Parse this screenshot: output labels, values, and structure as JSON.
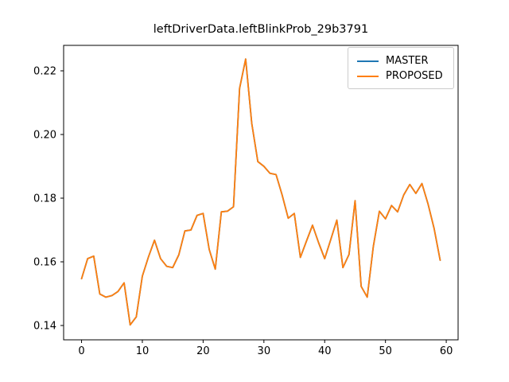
{
  "chart_data": {
    "type": "line",
    "title": "leftDriverData.leftBlinkProb_29b3791",
    "xlabel": "",
    "ylabel": "",
    "grid": false,
    "legend_position": "upper right",
    "xlim": [
      -2.95,
      61.95
    ],
    "ylim": [
      0.1355,
      0.228
    ],
    "xticks": [
      0,
      10,
      20,
      30,
      40,
      50,
      60
    ],
    "xtick_labels": [
      "0",
      "10",
      "20",
      "30",
      "40",
      "50",
      "60"
    ],
    "yticks": [
      0.14,
      0.16,
      0.18,
      0.2,
      0.22
    ],
    "ytick_labels": [
      "0.14",
      "0.16",
      "0.18",
      "0.20",
      "0.22"
    ],
    "x": [
      0,
      1,
      2,
      3,
      4,
      5,
      6,
      7,
      8,
      9,
      10,
      11,
      12,
      13,
      14,
      15,
      16,
      17,
      18,
      19,
      20,
      21,
      22,
      23,
      24,
      25,
      26,
      27,
      28,
      29,
      30,
      31,
      32,
      33,
      34,
      35,
      36,
      37,
      38,
      39,
      40,
      41,
      42,
      43,
      44,
      45,
      46,
      47,
      48,
      49,
      50,
      51,
      52,
      53,
      54,
      55,
      56,
      57,
      58,
      59
    ],
    "series": [
      {
        "name": "MASTER",
        "color": "#1f77b4",
        "note": "fully overlapped by PROPOSED in the image",
        "values": [
          0.1547,
          0.161,
          0.1618,
          0.1499,
          0.1489,
          0.1494,
          0.1507,
          0.1534,
          0.1402,
          0.1427,
          0.1555,
          0.1615,
          0.1668,
          0.161,
          0.1586,
          0.1582,
          0.1622,
          0.1697,
          0.17,
          0.1746,
          0.1752,
          0.1639,
          0.1577,
          0.1757,
          0.1759,
          0.1773,
          0.2145,
          0.2237,
          0.2035,
          0.1915,
          0.19,
          0.1878,
          0.1874,
          0.181,
          0.1737,
          0.1752,
          0.1614,
          0.1665,
          0.1715,
          0.166,
          0.161,
          0.167,
          0.1731,
          0.1582,
          0.1623,
          0.1792,
          0.1523,
          0.1489,
          0.1648,
          0.1759,
          0.1735,
          0.1777,
          0.1757,
          0.181,
          0.1843,
          0.1815,
          0.1846,
          0.1782,
          0.1705,
          0.1605
        ]
      },
      {
        "name": "PROPOSED",
        "color": "#ff7f0e",
        "note": "drawn on top of MASTER",
        "values": [
          0.1547,
          0.161,
          0.1618,
          0.1499,
          0.1489,
          0.1494,
          0.1507,
          0.1534,
          0.1402,
          0.1427,
          0.1555,
          0.1615,
          0.1668,
          0.161,
          0.1586,
          0.1582,
          0.1622,
          0.1697,
          0.17,
          0.1746,
          0.1752,
          0.1639,
          0.1577,
          0.1757,
          0.1759,
          0.1773,
          0.2145,
          0.2237,
          0.2035,
          0.1915,
          0.19,
          0.1878,
          0.1874,
          0.181,
          0.1737,
          0.1752,
          0.1614,
          0.1665,
          0.1715,
          0.166,
          0.161,
          0.167,
          0.1731,
          0.1582,
          0.1623,
          0.1792,
          0.1523,
          0.1489,
          0.1648,
          0.1759,
          0.1735,
          0.1777,
          0.1757,
          0.181,
          0.1843,
          0.1815,
          0.1846,
          0.1782,
          0.1705,
          0.1605
        ]
      }
    ]
  },
  "legend": {
    "items": [
      {
        "label": "MASTER",
        "color": "#1f77b4"
      },
      {
        "label": "PROPOSED",
        "color": "#ff7f0e"
      }
    ]
  },
  "colors": {
    "background": "#ffffff",
    "spine": "#000000",
    "legend_border": "#cccccc"
  }
}
